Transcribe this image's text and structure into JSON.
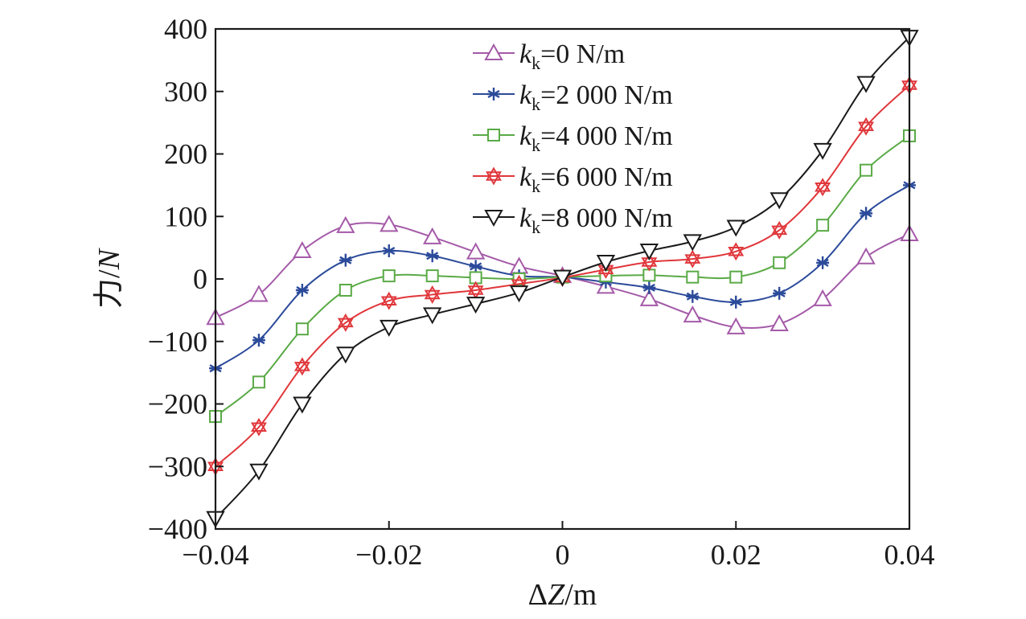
{
  "chart_data": {
    "type": "line",
    "title": "",
    "xlabel": "ΔZ/m",
    "ylabel": "力/N",
    "xlabel_parts": {
      "delta": "Δ",
      "var": "Z",
      "unit": "/m"
    },
    "ylabel_parts": {
      "main": "力/",
      "var": "N"
    },
    "xlim": [
      -0.04,
      0.04
    ],
    "ylim": [
      -400,
      400
    ],
    "xticks": [
      -0.04,
      -0.02,
      0,
      0.02,
      0.04
    ],
    "xtick_labels": [
      "−0.04",
      "−0.02",
      "0",
      "0.02",
      "0.04"
    ],
    "yticks": [
      -400,
      -300,
      -200,
      -100,
      0,
      100,
      200,
      300,
      400
    ],
    "ytick_labels": [
      "−400",
      "−300",
      "−200",
      "−100",
      "0",
      "100",
      "200",
      "300",
      "400"
    ],
    "grid": false,
    "legend_position": "top-center",
    "x": [
      -0.04,
      -0.035,
      -0.03,
      -0.025,
      -0.02,
      -0.015,
      -0.01,
      -0.005,
      0,
      0.005,
      0.01,
      0.015,
      0.02,
      0.025,
      0.03,
      0.035,
      0.04
    ],
    "series": [
      {
        "name": "kk=0 N/m",
        "legend_var": "k",
        "legend_sub": "k",
        "legend_rest": "=0 N/m",
        "color": "#a45aa8",
        "marker": "triangle-up",
        "values": [
          -62,
          -25,
          45,
          85,
          87,
          67,
          43,
          20,
          5,
          -12,
          -32,
          -58,
          -77,
          -72,
          -32,
          35,
          72
        ]
      },
      {
        "name": "kk=2 000 N/m",
        "legend_var": "k",
        "legend_sub": "k",
        "legend_rest": "=2 000 N/m",
        "color": "#2b4a9a",
        "marker": "asterisk",
        "values": [
          -143,
          -98,
          -18,
          30,
          45,
          37,
          20,
          5,
          3,
          -5,
          -14,
          -28,
          -37,
          -23,
          26,
          105,
          150
        ]
      },
      {
        "name": "kk=4 000 N/m",
        "legend_var": "k",
        "legend_sub": "k",
        "legend_rest": "=4 000 N/m",
        "color": "#5aaa46",
        "marker": "square",
        "values": [
          -220,
          -165,
          -80,
          -18,
          5,
          5,
          2,
          0,
          3,
          5,
          6,
          3,
          3,
          26,
          86,
          174,
          229
        ]
      },
      {
        "name": "kk=6 000 N/m",
        "legend_var": "k",
        "legend_sub": "k",
        "legend_rest": "=6 000 N/m",
        "color": "#e0373b",
        "marker": "hexagram",
        "values": [
          -300,
          -237,
          -140,
          -70,
          -35,
          -25,
          -18,
          -8,
          2,
          15,
          27,
          32,
          44,
          78,
          147,
          244,
          310
        ]
      },
      {
        "name": "kk=8 000 N/m",
        "legend_var": "k",
        "legend_sub": "k",
        "legend_rest": "=8 000 N/m",
        "color": "#1a1a1a",
        "marker": "triangle-down",
        "values": [
          -383,
          -307,
          -200,
          -120,
          -77,
          -57,
          -40,
          -22,
          3,
          27,
          45,
          60,
          83,
          127,
          206,
          313,
          387
        ]
      }
    ]
  }
}
